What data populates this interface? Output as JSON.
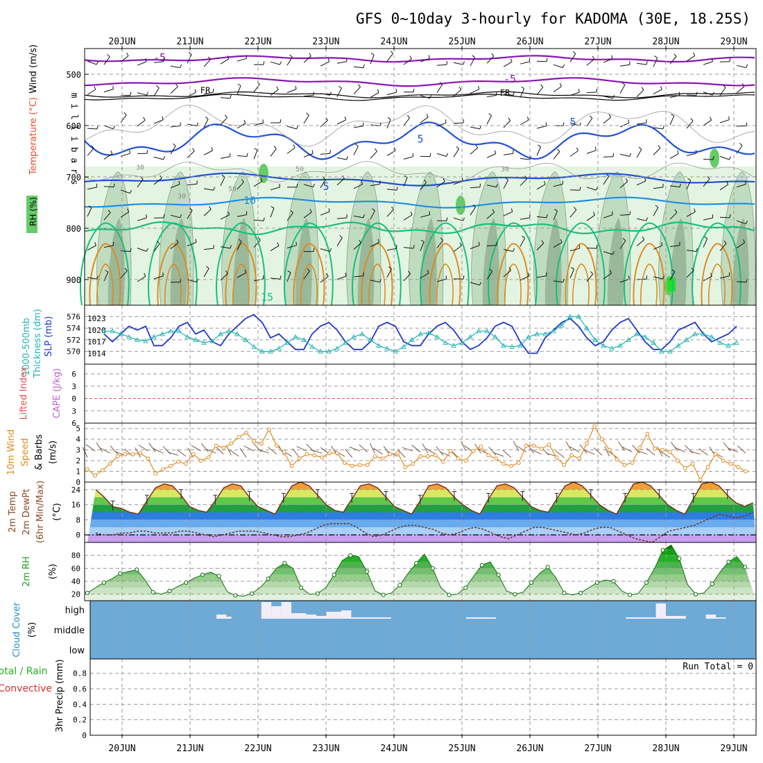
{
  "title": "GFS 0~10day 3-hourly for KADOMA (30E, 18.25S)",
  "date_labels": [
    "20JUN",
    "21JUN",
    "22JUN",
    "23JUN",
    "24JUN",
    "25JUN",
    "26JUN",
    "27JUN",
    "28JUN",
    "29JUN"
  ],
  "colors": {
    "purple": "#8a14b4",
    "blue": "#2050d8",
    "lightblue": "#1e90e0",
    "green": "#14c07a",
    "orange": "#e08a1e",
    "cyan": "#20b4b4",
    "rh_light": "#e4f4e2",
    "rh_mid": "#c0dcc0",
    "rh_dark": "#9ab89a",
    "rh_green": "#66cc66",
    "cloud_bg": "#6eaad6"
  },
  "chart_data": [
    {
      "type": "heatmap",
      "panel": "upper-air",
      "ylabel": "m i l l i b a r s",
      "side_labels": [
        "Wind (m/s)",
        "Temperature (°C)",
        "RH (%)"
      ],
      "yticks": [
        500,
        600,
        700,
        800,
        900
      ],
      "ylim": [
        950,
        450
      ],
      "contour_labels": [
        "-5",
        "-5",
        "FR",
        "FR",
        "5",
        "5",
        "5",
        "10",
        "15",
        "30",
        "50",
        "30",
        "50",
        "30"
      ],
      "temperature_levels": [
        -5,
        0,
        5,
        10,
        15,
        20
      ]
    },
    {
      "type": "line",
      "panel": "thickness-slp",
      "side_labels": [
        "1000-500mb",
        "Thickness (dm)",
        "SLP (mb)"
      ],
      "left_ticks": [
        570,
        572,
        574,
        576
      ],
      "right_ticks": [
        1014,
        1017,
        1020,
        1023
      ],
      "series": [
        {
          "name": "SLP (mb)",
          "axis": "right",
          "values": [
            1019,
            1017,
            1019,
            1021,
            1020,
            1021,
            1016,
            1016,
            1018,
            1021,
            1022,
            1019,
            1020,
            1017,
            1016,
            1019,
            1021,
            1023,
            1024,
            1022,
            1018,
            1019,
            1017,
            1015,
            1015,
            1019,
            1021,
            1022,
            1020,
            1017,
            1015,
            1015,
            1017,
            1021,
            1022,
            1021,
            1017,
            1016,
            1016,
            1019,
            1021,
            1022,
            1020,
            1017,
            1015,
            1016,
            1018,
            1021,
            1022,
            1021,
            1017,
            1014,
            1014,
            1018,
            1020,
            1022,
            1023,
            1021,
            1018,
            1016,
            1017,
            1020,
            1022,
            1023,
            1020,
            1017,
            1015,
            1015,
            1017,
            1020,
            1021,
            1022,
            1019,
            1017,
            1018,
            1019,
            1021
          ]
        },
        {
          "name": "1000-500mb Thickness (dm)",
          "axis": "left",
          "values": [
            573.5,
            573.5,
            573.0,
            572.5,
            572.0,
            571.8,
            572.5,
            573.0,
            573.5,
            573.5,
            572.5,
            572.0,
            571.5,
            571.8,
            573.0,
            573.5,
            573.0,
            572.0,
            570.8,
            570.0,
            570.0,
            570.5,
            571.5,
            572.5,
            572.0,
            570.8,
            570.0,
            570.0,
            570.5,
            571.5,
            572.5,
            573.0,
            572.0,
            571.0,
            570.5,
            570.0,
            570.8,
            572.0,
            573.0,
            573.2,
            572.5,
            571.5,
            571.0,
            571.5,
            572.5,
            573.5,
            573.5,
            572.5,
            571.0,
            570.8,
            571.0,
            572.5,
            573.0,
            573.0,
            573.5,
            574.5,
            576.0,
            576.0,
            574.0,
            572.0,
            571.0,
            570.5,
            571.0,
            572.0,
            573.0,
            572.5,
            571.5,
            570.0,
            570.0,
            571.0,
            572.0,
            573.0,
            573.0,
            572.5,
            571.5,
            571.0,
            571.5
          ]
        }
      ]
    },
    {
      "type": "line",
      "panel": "instability",
      "side_labels": [
        "Lifted Index",
        "CAPE (J/kg)"
      ],
      "yticks": [
        "6",
        "3",
        "0",
        "3",
        "6"
      ],
      "series": []
    },
    {
      "type": "line",
      "panel": "10m-wind",
      "side_labels": [
        "10m Wind",
        "Speed",
        "& Barbs"
      ],
      "ylabel": "(m/s)",
      "yticks": [
        0,
        1,
        2,
        3,
        4,
        5
      ],
      "ylim": [
        0,
        5.5
      ],
      "series": [
        {
          "name": "10m Wind Speed",
          "values": [
            1.2,
            0.6,
            1.1,
            1.7,
            2.4,
            2.6,
            2.6,
            2.7,
            2.2,
            0.8,
            1.2,
            1.5,
            1.9,
            1.7,
            2.6,
            2.0,
            2.3,
            3.4,
            3.2,
            3.6,
            4.2,
            4.6,
            3.8,
            3.6,
            4.9,
            3.4,
            2.8,
            1.5,
            2.2,
            2.6,
            2.5,
            2.3,
            2.7,
            2.7,
            1.8,
            1.5,
            1.6,
            1.6,
            2.4,
            2.2,
            2.6,
            2.7,
            1.4,
            1.7,
            2.4,
            2.4,
            2.5,
            1.9,
            2.9,
            2.2,
            2.0,
            2.9,
            3.3,
            2.5,
            2.2,
            1.7,
            1.5,
            1.8,
            3.4,
            3.4,
            3.1,
            3.5,
            2.3,
            1.6,
            2.5,
            2.2,
            3.6,
            5.2,
            4.0,
            3.0,
            2.1,
            1.6,
            1.8,
            3.2,
            4.5,
            3.1,
            3.0,
            2.8,
            2.0,
            1.3,
            1.7,
            0.2,
            1.4,
            2.6,
            2.0,
            1.7,
            1.4,
            1.0
          ]
        }
      ]
    },
    {
      "type": "area",
      "panel": "2m-temp",
      "side_labels": [
        "2m Temp",
        "2m DewPt",
        "(6hr Min/Max)"
      ],
      "ylabel": "(°C)",
      "yticks": [
        0,
        8,
        16,
        24
      ],
      "ylim": [
        -4,
        28
      ],
      "series": [
        {
          "name": "2m Temp",
          "values": [
            24,
            20,
            15,
            14,
            12,
            11,
            18,
            25,
            27,
            26,
            21,
            15,
            13,
            12,
            18,
            25,
            27,
            26,
            20,
            15,
            13,
            11,
            19,
            26,
            28,
            26,
            21,
            16,
            13,
            12,
            19,
            26,
            27,
            25,
            20,
            15,
            13,
            11,
            18,
            26,
            27,
            25,
            20,
            16,
            13,
            11,
            19,
            26,
            27,
            25,
            20,
            15,
            13,
            12,
            19,
            26,
            28,
            26,
            21,
            16,
            13,
            11,
            19,
            27,
            28,
            26,
            21,
            16,
            13,
            11,
            19,
            27,
            28,
            26,
            21,
            17,
            15,
            17
          ]
        },
        {
          "name": "2m DewPt",
          "values": [
            1,
            0,
            0,
            1,
            1,
            2,
            2,
            1,
            1,
            1,
            2,
            2,
            1,
            0,
            -1,
            0,
            1,
            2,
            2,
            2,
            1,
            0,
            -1,
            -1,
            0,
            1,
            3,
            5,
            6,
            6,
            6,
            4,
            1,
            -1,
            0,
            2,
            4,
            5,
            5,
            4,
            3,
            1,
            0,
            1,
            3,
            4,
            3,
            1,
            -1,
            -2,
            0,
            2,
            4,
            4,
            3,
            2,
            1,
            0,
            1,
            3,
            4,
            4,
            2,
            0,
            -2,
            -3,
            -4,
            -1,
            2,
            3,
            4,
            5,
            7,
            9,
            11,
            10,
            9,
            10,
            12
          ]
        }
      ]
    },
    {
      "type": "area",
      "panel": "2m-rh",
      "side_labels": [
        "2m RH"
      ],
      "ylabel": "(%)",
      "yticks": [
        20,
        40,
        60,
        80
      ],
      "ylim": [
        10,
        100
      ],
      "series": [
        {
          "name": "2m RH",
          "values": [
            22,
            30,
            38,
            44,
            52,
            55,
            58,
            42,
            23,
            20,
            25,
            32,
            38,
            45,
            50,
            54,
            48,
            24,
            18,
            17,
            21,
            30,
            44,
            60,
            68,
            60,
            30,
            20,
            21,
            30,
            50,
            72,
            80,
            78,
            55,
            25,
            19,
            22,
            34,
            52,
            68,
            82,
            60,
            30,
            19,
            20,
            30,
            48,
            65,
            70,
            50,
            25,
            20,
            23,
            38,
            52,
            62,
            45,
            22,
            19,
            22,
            30,
            38,
            42,
            40,
            25,
            19,
            21,
            38,
            60,
            88,
            96,
            75,
            35,
            20,
            22,
            36,
            55,
            70,
            78,
            62
          ]
        }
      ]
    },
    {
      "type": "bar",
      "panel": "cloud-cover",
      "side_labels": [
        "Cloud Cover"
      ],
      "ylabel": "(%)",
      "yticks": [
        "high",
        "middle",
        "low"
      ],
      "series": [
        {
          "name": "high",
          "segments": [
            {
              "start": 15.5,
              "end": 16.7,
              "height": 6
            },
            {
              "start": 16.7,
              "end": 17.3,
              "height": 3
            },
            {
              "start": 20.9,
              "end": 22.1,
              "height": 24
            },
            {
              "start": 22.1,
              "end": 23.3,
              "height": 18
            },
            {
              "start": 23.3,
              "end": 24.5,
              "height": 24
            },
            {
              "start": 24.5,
              "end": 26.3,
              "height": 8
            },
            {
              "start": 26.3,
              "end": 27.5,
              "height": 6
            },
            {
              "start": 27.5,
              "end": 28.7,
              "height": 4
            },
            {
              "start": 28.7,
              "end": 30.5,
              "height": 10
            },
            {
              "start": 30.5,
              "end": 31.7,
              "height": 12
            },
            {
              "start": 31.7,
              "end": 36.5,
              "height": 2
            },
            {
              "start": 45.5,
              "end": 49.1,
              "height": 2
            },
            {
              "start": 64.7,
              "end": 68.3,
              "height": 2
            },
            {
              "start": 68.3,
              "end": 69.5,
              "height": 22
            },
            {
              "start": 69.5,
              "end": 71.9,
              "height": 4
            },
            {
              "start": 74.3,
              "end": 75.5,
              "height": 6
            },
            {
              "start": 75.5,
              "end": 76.7,
              "height": 2
            }
          ]
        }
      ]
    },
    {
      "type": "line",
      "panel": "precip",
      "side_labels": [
        "Total / Rain",
        "Convective"
      ],
      "ylabel": "3hr Precip (mm)",
      "yticks": [
        0,
        0.2,
        0.4,
        0.6,
        0.8
      ],
      "ylim": [
        0,
        0.95
      ],
      "annotation": "Run Total = 0",
      "series": []
    }
  ]
}
